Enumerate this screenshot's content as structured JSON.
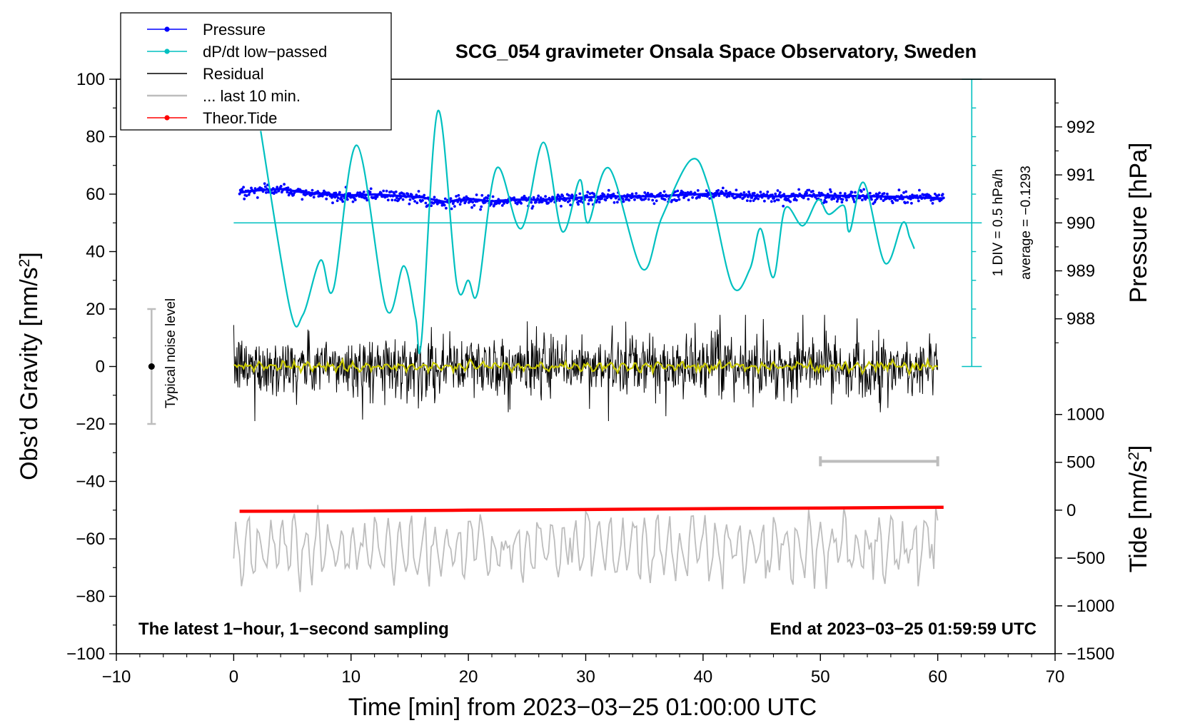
{
  "chart_data": {
    "type": "line",
    "title": "SCG_054 gravimeter Onsala Space Observatory, Sweden",
    "xlabel": "Time [min] from 2023−03−25 01:00:00 UTC",
    "ylabel_left": "Obs’d Gravity [nm/s",
    "ylabel_left_sup": "2",
    "ylabel_left_end": "]",
    "ylabel_right_pressure": "Pressure [hPa]",
    "ylabel_right_tide": "Tide [nm/s",
    "ylabel_right_tide_sup": "2",
    "ylabel_right_tide_end": "]",
    "xlim": [
      -10,
      70
    ],
    "ylim": [
      -100,
      100
    ],
    "x_ticks": [
      -10,
      0,
      10,
      20,
      30,
      40,
      50,
      60,
      70
    ],
    "x_tick_labels": [
      "−10",
      "0",
      "10",
      "20",
      "30",
      "40",
      "50",
      "60",
      "70"
    ],
    "y_ticks": [
      -100,
      -80,
      -60,
      -40,
      -20,
      0,
      20,
      40,
      60,
      80,
      100
    ],
    "y_tick_labels": [
      "−100",
      "−80",
      "−60",
      "−40",
      "−20",
      "0",
      "20",
      "40",
      "60",
      "80",
      "100"
    ],
    "pressure_axis": {
      "ticks": [
        988,
        989,
        990,
        991,
        992
      ],
      "tick_labels": [
        "988",
        "989",
        "990",
        "991",
        "992"
      ],
      "gravity_at_990": 50,
      "gravity_per_hpa": 16.7
    },
    "tide_axis": {
      "ticks": [
        -1500,
        -1000,
        -500,
        0,
        500,
        1000
      ],
      "tick_labels": [
        "−1500",
        "−1000",
        "−500",
        "0",
        "500",
        "1000"
      ],
      "gravity_at_0": -50,
      "gravity_per_1000": 33.3
    },
    "legend": [
      {
        "label": "Pressure",
        "color": "#0000ff",
        "marker": true
      },
      {
        "label": "dP/dt low−passed",
        "color": "#00c0c0",
        "marker": true
      },
      {
        "label": "Residual",
        "color": "#000000",
        "marker": false
      },
      {
        "label": "... last 10 min.",
        "color": "#bdbdbd",
        "marker": false
      },
      {
        "label": "Theor.Tide",
        "color": "#ff0000",
        "marker": true
      }
    ],
    "series": [
      {
        "name": "Pressure",
        "color": "#0000ff",
        "x": [
          0.5,
          2,
          4,
          6,
          8,
          10,
          12,
          14,
          16,
          18,
          20,
          22,
          24,
          26,
          28,
          30,
          32,
          34,
          36,
          38,
          40,
          42,
          44,
          46,
          48,
          50,
          52,
          54,
          56,
          58,
          60.5
        ],
        "y": [
          60.5,
          61.3,
          61.8,
          60.6,
          59.9,
          59.6,
          59.9,
          59.4,
          58.9,
          57.3,
          58.4,
          57.5,
          58.1,
          58.0,
          58.4,
          58.9,
          59.2,
          59.3,
          59.2,
          59.7,
          60.0,
          60.2,
          59.5,
          59.2,
          59.4,
          59.6,
          59.4,
          59.3,
          59.1,
          58.9,
          58.5
        ]
      },
      {
        "name": "dP/dt low−passed",
        "color": "#00c0c0",
        "x": [
          2.3,
          4.8,
          5.9,
          7.4,
          8.5,
          10.5,
          13.0,
          14.5,
          15.5,
          16.0,
          17.4,
          19.0,
          20.0,
          20.8,
          22.4,
          24.5,
          26.4,
          28.0,
          29.5,
          30.2,
          32.0,
          34.8,
          36.5,
          39.0,
          40.5,
          42.5,
          44.0,
          44.9,
          46.0,
          47.0,
          48.5,
          49.8,
          50.7,
          52.0,
          52.5,
          53.7,
          55.5,
          57.0,
          57.6,
          58.0
        ],
        "y": [
          82,
          20,
          18,
          37,
          27,
          77,
          20,
          35,
          17,
          9,
          89,
          29,
          30,
          26,
          69,
          48,
          78,
          47,
          65,
          50,
          69,
          34,
          52,
          72,
          62,
          28,
          34,
          48,
          31,
          55,
          49,
          58,
          53,
          56,
          47,
          64,
          36,
          50,
          45,
          41
        ]
      },
      {
        "name": "Residual",
        "color": "#000000",
        "x_range": [
          0,
          60
        ],
        "mean": 0,
        "typical_amplitude": 10,
        "min": -19,
        "max": 18
      },
      {
        "name": "Residual low−passed",
        "color": "#c8c800",
        "x_range": [
          0,
          60
        ],
        "mean": 0
      },
      {
        "name": "Theor.Tide",
        "color": "#ff0000",
        "x": [
          0.5,
          10,
          20,
          30,
          40,
          50,
          60.5
        ],
        "y": [
          -50.4,
          -50.3,
          -50.0,
          -49.8,
          -49.5,
          -49.3,
          -49.0
        ]
      },
      {
        "name": "... last 10 min.",
        "color": "#bdbdbd",
        "x_range": [
          0,
          60
        ],
        "mean": -63,
        "min": -81,
        "max": -44
      }
    ],
    "annotations": {
      "noise_label": "Typical noise level",
      "noise_bar": {
        "x": -7,
        "y_min": -20,
        "y_max": 20,
        "y_center": 0
      },
      "scale_div_label": "1 DIV = 0.5 hPa/h",
      "scale_avg_label": "average = −0.1293",
      "scale_bar": {
        "x": 62.9,
        "y_min": 0,
        "y_max": 100,
        "divisions": 10
      },
      "ten_min_bar": {
        "x_start": 50,
        "x_end": 60,
        "y": -33
      },
      "dpdt_zero_line_y": 50,
      "corner_left": "The latest 1−hour, 1−second sampling",
      "corner_right": "End at 2023−03−25 01:59:59 UTC"
    }
  }
}
